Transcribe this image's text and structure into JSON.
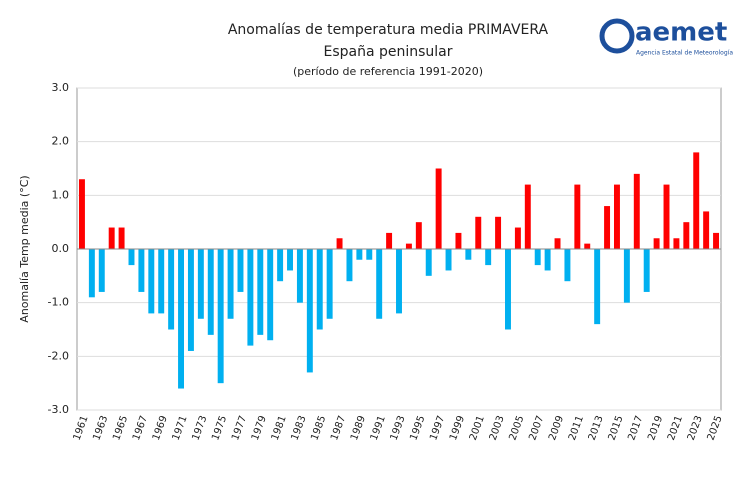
{
  "chart_data": {
    "type": "bar",
    "title": "Anomalías de temperatura media PRIMAVERA",
    "subtitle": "España peninsular",
    "note": "(período de referencia 1991-2020)",
    "ylabel": "Anomalía Temp media (°C)",
    "logo_text": "aemet",
    "logo_subtitle": "Agencia Estatal de Meteorología",
    "categories": [
      "1961",
      null,
      "1963",
      null,
      "1965",
      null,
      "1967",
      null,
      "1969",
      null,
      "1971",
      null,
      "1973",
      null,
      "1975",
      null,
      "1977",
      null,
      "1979",
      null,
      "1981",
      null,
      "1983",
      null,
      "1985",
      null,
      "1987",
      null,
      "1989",
      null,
      "1991",
      null,
      "1993",
      null,
      "1995",
      null,
      "1997",
      null,
      "1999",
      null,
      "2001",
      null,
      "2003",
      null,
      "2005",
      null,
      "2007",
      null,
      "2009",
      null,
      "2011",
      null,
      "2013",
      null,
      "2015",
      null,
      "2017",
      null,
      "2019",
      null,
      "2021",
      null,
      "2023",
      null,
      "2025"
    ],
    "values": [
      1.3,
      -0.9,
      -0.8,
      0.4,
      0.4,
      -0.3,
      -0.8,
      -1.2,
      -1.2,
      -1.5,
      -2.6,
      -1.9,
      -1.3,
      -1.6,
      -2.5,
      -1.3,
      -0.8,
      -1.8,
      -1.6,
      -1.7,
      -0.6,
      -0.4,
      -1.0,
      -2.3,
      -1.5,
      -1.3,
      0.2,
      -0.6,
      -0.2,
      -0.2,
      -1.3,
      0.3,
      -1.2,
      0.1,
      0.5,
      -0.5,
      1.5,
      -0.4,
      0.3,
      -0.2,
      0.6,
      -0.3,
      0.6,
      -1.5,
      0.4,
      1.2,
      -0.3,
      -0.4,
      0.2,
      -0.6,
      1.2,
      0.1,
      -1.4,
      0.8,
      1.2,
      -1.0,
      1.4,
      -0.8,
      0.2,
      1.2,
      0.2,
      0.5,
      1.8,
      0.7,
      0.3
    ],
    "positive_color": "#ff0000",
    "negative_color": "#00b0f0",
    "ylim": [
      -3,
      3
    ],
    "yticks": [
      {
        "value": -3,
        "label": "-3.0"
      },
      {
        "value": -2,
        "label": "-2.0"
      },
      {
        "value": -1,
        "label": "-1.0"
      },
      {
        "value": 0,
        "label": "0.0"
      },
      {
        "value": 1,
        "label": "1.0"
      },
      {
        "value": 2,
        "label": "2.0"
      },
      {
        "value": 3,
        "label": "3.0"
      }
    ],
    "grid": true
  }
}
